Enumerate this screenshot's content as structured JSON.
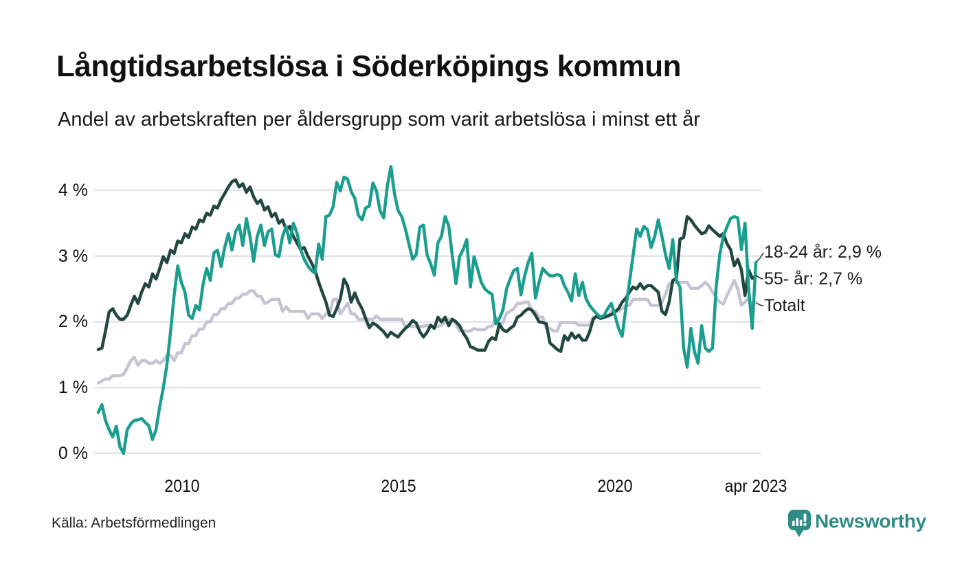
{
  "header": {
    "title": "Långtidsarbetslösa i Söderköpings kommun",
    "subtitle": "Andel av arbetskraften per åldersgrupp som varit arbetslösa i minst ett år"
  },
  "footer": {
    "source": "Källa: Arbetsförmedlingen",
    "brand": "Newsworthy"
  },
  "colors": {
    "series_18_24": "#1b9e8f",
    "series_55": "#22473f",
    "series_total": "#c6c3d3",
    "gridline": "#e3e3e9",
    "text": "#1a1a1a",
    "brand_teal": "#2f8c85"
  },
  "chart_data": {
    "type": "line",
    "title": "Långtidsarbetslösa i Söderköpings kommun",
    "subtitle": "Andel av arbetskraften per åldersgrupp som varit arbetslösa i minst ett år",
    "x_start": "2008-02",
    "x_end": "2023-04",
    "freq": "monthly",
    "ylim": [
      0,
      4.4
    ],
    "grid": "horizontal",
    "legend_position": "right-end-labels",
    "yticks": [
      "0 %",
      "1 %",
      "2 %",
      "3 %",
      "4 %"
    ],
    "xticks": [
      "2010",
      "2015",
      "2020",
      "apr 2023"
    ],
    "series": [
      {
        "name": "18-24 år",
        "label": "18-24 år: 2,9 %",
        "end_value": "2,9 %",
        "color": "#1b9e8f",
        "values": [
          0.62,
          0.74,
          0.5,
          0.36,
          0.25,
          0.41,
          0.1,
          0.0,
          0.36,
          0.45,
          0.5,
          0.51,
          0.53,
          0.47,
          0.42,
          0.21,
          0.36,
          0.71,
          0.99,
          1.35,
          1.85,
          2.4,
          2.85,
          2.6,
          2.45,
          2.1,
          2.05,
          2.25,
          2.18,
          2.57,
          2.81,
          2.63,
          3.05,
          3.09,
          2.84,
          3.13,
          3.34,
          3.09,
          3.37,
          3.47,
          3.16,
          3.57,
          3.3,
          2.92,
          3.3,
          3.47,
          3.16,
          3.37,
          3.41,
          3.02,
          2.99,
          3.3,
          3.45,
          3.2,
          3.5,
          3.35,
          3.1,
          2.95,
          2.85,
          2.78,
          2.74,
          3.18,
          2.95,
          3.6,
          3.62,
          3.75,
          4.12,
          3.99,
          4.2,
          4.17,
          3.98,
          3.88,
          3.62,
          3.55,
          3.73,
          3.76,
          4.11,
          3.99,
          3.69,
          3.58,
          4.07,
          4.36,
          3.94,
          3.69,
          3.6,
          3.41,
          3.18,
          2.95,
          3.02,
          3.44,
          3.47,
          3.02,
          2.88,
          2.71,
          3.2,
          3.3,
          3.6,
          3.46,
          3.0,
          2.58,
          2.99,
          3.1,
          3.25,
          2.53,
          2.99,
          2.8,
          2.6,
          2.5,
          2.45,
          2.42,
          1.97,
          2.05,
          2.18,
          2.5,
          2.65,
          2.78,
          2.81,
          2.41,
          2.7,
          2.9,
          3.04,
          2.36,
          2.6,
          2.81,
          2.75,
          2.7,
          2.7,
          2.72,
          2.7,
          2.55,
          2.45,
          2.32,
          2.73,
          2.4,
          2.6,
          2.35,
          2.25,
          2.18,
          2.12,
          2.07,
          2.1,
          2.2,
          2.28,
          2.1,
          1.9,
          1.78,
          2.2,
          2.6,
          3.0,
          3.41,
          3.3,
          3.45,
          3.4,
          3.13,
          3.3,
          3.55,
          3.3,
          3.02,
          2.81,
          3.25,
          2.63,
          2.53,
          1.6,
          1.31,
          1.9,
          1.55,
          1.37,
          1.94,
          1.6,
          1.55,
          1.6,
          2.53,
          3.02,
          3.3,
          3.44,
          3.57,
          3.6,
          3.58,
          3.1,
          3.5,
          2.5,
          1.9,
          2.9
        ]
      },
      {
        "name": "55- år",
        "label": "55- år: 2,7 %",
        "end_value": "2,7 %",
        "color": "#22473f",
        "values": [
          1.58,
          1.6,
          1.86,
          2.15,
          2.2,
          2.1,
          2.04,
          2.04,
          2.1,
          2.25,
          2.39,
          2.28,
          2.45,
          2.58,
          2.53,
          2.73,
          2.65,
          2.81,
          2.99,
          2.9,
          3.09,
          3.04,
          3.23,
          3.2,
          3.34,
          3.28,
          3.44,
          3.41,
          3.55,
          3.52,
          3.65,
          3.62,
          3.76,
          3.73,
          3.86,
          3.95,
          4.05,
          4.13,
          4.16,
          4.05,
          4.1,
          3.97,
          4.05,
          3.9,
          3.8,
          3.85,
          3.7,
          3.75,
          3.6,
          3.65,
          3.5,
          3.55,
          3.4,
          3.45,
          3.3,
          3.2,
          3.1,
          3.13,
          3.0,
          2.9,
          2.78,
          2.6,
          2.45,
          2.3,
          2.1,
          2.08,
          2.2,
          2.35,
          2.65,
          2.55,
          2.3,
          2.44,
          2.3,
          2.2,
          2.05,
          1.91,
          1.98,
          1.95,
          1.9,
          1.85,
          1.77,
          1.84,
          1.8,
          1.77,
          1.84,
          1.9,
          1.95,
          2.02,
          1.98,
          1.85,
          1.77,
          1.84,
          1.95,
          1.9,
          2.07,
          2.0,
          2.07,
          1.94,
          2.04,
          2.0,
          1.94,
          1.83,
          1.75,
          1.62,
          1.6,
          1.57,
          1.57,
          1.57,
          1.7,
          1.76,
          1.73,
          1.97,
          1.88,
          1.85,
          1.9,
          1.94,
          2.07,
          2.1,
          2.16,
          2.2,
          2.18,
          2.1,
          2.0,
          1.99,
          1.97,
          1.68,
          1.63,
          1.58,
          1.55,
          1.79,
          1.72,
          1.83,
          1.75,
          1.8,
          1.72,
          1.72,
          1.85,
          2.04,
          2.09,
          2.05,
          2.07,
          2.09,
          2.11,
          2.15,
          2.2,
          2.3,
          2.36,
          2.45,
          2.53,
          2.5,
          2.58,
          2.5,
          2.55,
          2.55,
          2.5,
          2.45,
          2.16,
          2.11,
          2.3,
          2.63,
          2.66,
          3.26,
          3.28,
          3.6,
          3.55,
          3.47,
          3.4,
          3.34,
          3.36,
          3.46,
          3.4,
          3.35,
          3.3,
          3.34,
          3.19,
          3.1,
          2.85,
          2.95,
          2.79,
          2.4,
          2.79,
          2.66,
          2.7
        ]
      },
      {
        "name": "Totalt",
        "label": "Totalt",
        "end_value": "2,3 %",
        "color": "#c6c3d3",
        "values": [
          1.07,
          1.1,
          1.13,
          1.13,
          1.18,
          1.18,
          1.18,
          1.2,
          1.3,
          1.41,
          1.46,
          1.34,
          1.41,
          1.41,
          1.37,
          1.37,
          1.41,
          1.37,
          1.41,
          1.49,
          1.49,
          1.41,
          1.53,
          1.53,
          1.67,
          1.67,
          1.79,
          1.79,
          1.89,
          1.89,
          2.0,
          2.0,
          2.11,
          2.11,
          2.2,
          2.2,
          2.28,
          2.28,
          2.36,
          2.36,
          2.42,
          2.42,
          2.47,
          2.47,
          2.39,
          2.39,
          2.28,
          2.3,
          2.34,
          2.34,
          2.34,
          2.16,
          2.23,
          2.16,
          2.16,
          2.16,
          2.16,
          2.16,
          2.05,
          2.12,
          2.12,
          2.12,
          2.05,
          2.12,
          2.12,
          2.34,
          2.34,
          2.12,
          2.2,
          2.28,
          2.12,
          2.12,
          2.04,
          2.04,
          2.04,
          2.04,
          2.04,
          2.09,
          2.04,
          2.04,
          2.04,
          2.04,
          2.04,
          2.04,
          2.04,
          1.93,
          1.93,
          1.93,
          1.93,
          1.93,
          1.93,
          1.95,
          1.93,
          1.93,
          1.93,
          1.95,
          2.0,
          2.04,
          2.04,
          1.97,
          1.86,
          1.86,
          1.86,
          1.86,
          1.9,
          1.88,
          1.88,
          1.88,
          1.93,
          1.93,
          2.07,
          1.99,
          1.99,
          2.13,
          2.16,
          2.2,
          2.28,
          2.28,
          2.3,
          2.3,
          2.16,
          2.16,
          2.07,
          2.07,
          1.9,
          1.9,
          1.86,
          1.86,
          1.99,
          1.99,
          1.99,
          1.99,
          1.99,
          1.95,
          1.95,
          1.95,
          1.95,
          2.07,
          2.07,
          2.07,
          2.07,
          2.07,
          2.16,
          2.16,
          2.16,
          2.2,
          2.25,
          2.25,
          2.34,
          2.34,
          2.34,
          2.34,
          2.34,
          2.25,
          2.25,
          2.25,
          2.3,
          2.42,
          2.58,
          2.6,
          2.6,
          2.6,
          2.6,
          2.6,
          2.51,
          2.51,
          2.51,
          2.55,
          2.6,
          2.55,
          2.45,
          2.37,
          2.3,
          2.27,
          2.4,
          2.51,
          2.63,
          2.5,
          2.25,
          2.3,
          2.37,
          2.25,
          2.3
        ]
      }
    ]
  }
}
